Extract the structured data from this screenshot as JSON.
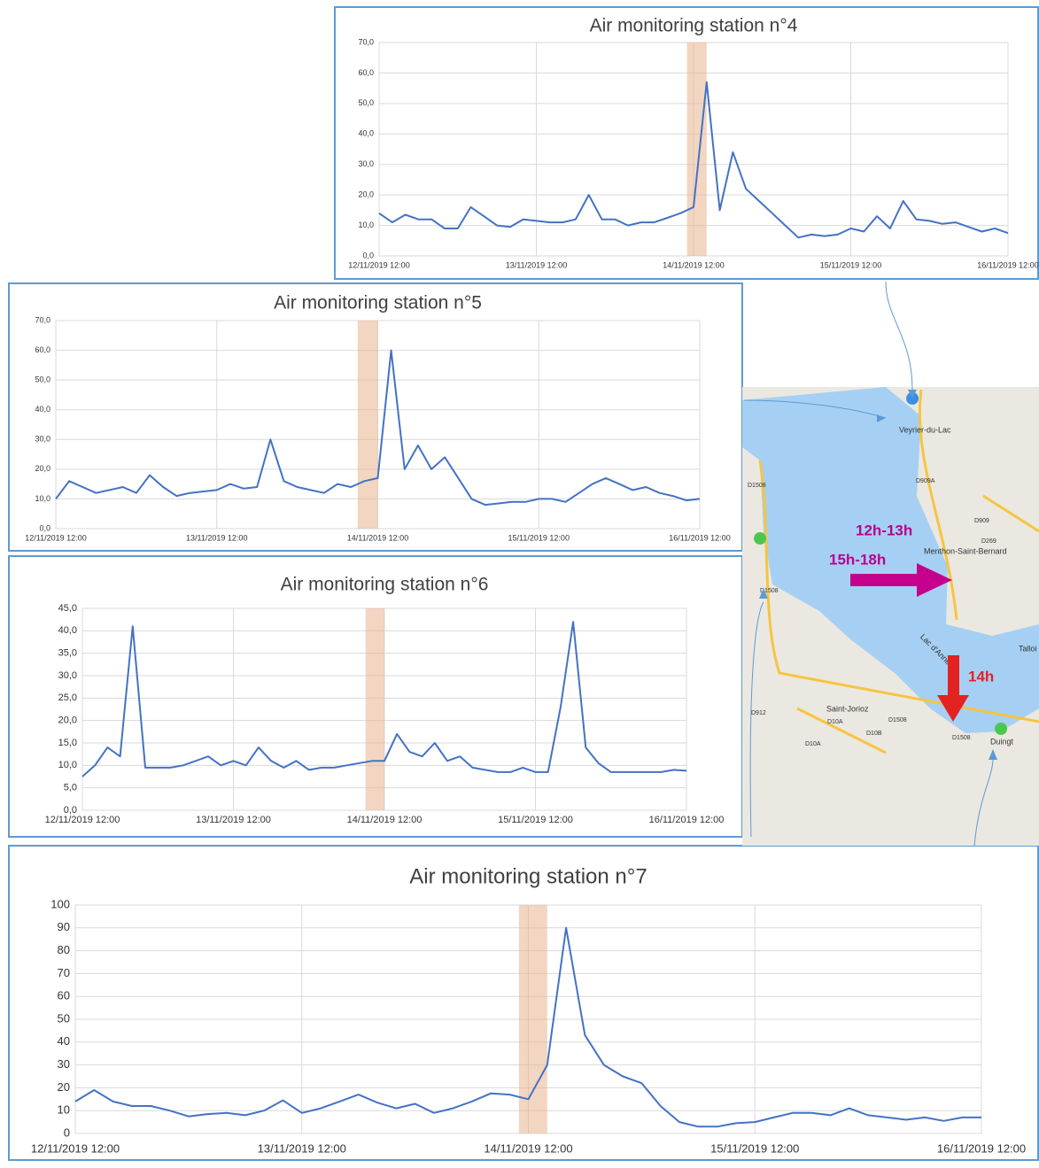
{
  "chart_data": [
    {
      "type": "line",
      "title": "Air monitoring station n°4",
      "x": [
        "12/11/2019 12:00",
        "12/11/2019 14:00",
        "12/11/2019 16:00",
        "12/11/2019 18:00",
        "12/11/2019 20:00",
        "12/11/2019 22:00",
        "13/11/2019 00:00",
        "13/11/2019 02:00",
        "13/11/2019 04:00",
        "13/11/2019 06:00",
        "13/11/2019 08:00",
        "13/11/2019 10:00",
        "13/11/2019 12:00",
        "13/11/2019 14:00",
        "13/11/2019 16:00",
        "13/11/2019 18:00",
        "13/11/2019 20:00",
        "13/11/2019 22:00",
        "14/11/2019 00:00",
        "14/11/2019 02:00",
        "14/11/2019 04:00",
        "14/11/2019 06:00",
        "14/11/2019 08:00",
        "14/11/2019 10:00",
        "14/11/2019 12:00",
        "14/11/2019 14:00",
        "14/11/2019 16:00",
        "14/11/2019 18:00",
        "14/11/2019 20:00",
        "14/11/2019 22:00",
        "15/11/2019 00:00",
        "15/11/2019 02:00",
        "15/11/2019 04:00",
        "15/11/2019 06:00",
        "15/11/2019 08:00",
        "15/11/2019 10:00",
        "15/11/2019 12:00",
        "15/11/2019 14:00",
        "15/11/2019 16:00",
        "15/11/2019 18:00",
        "15/11/2019 20:00",
        "15/11/2019 22:00",
        "16/11/2019 00:00",
        "16/11/2019 02:00",
        "16/11/2019 04:00",
        "16/11/2019 06:00",
        "16/11/2019 08:00",
        "16/11/2019 10:00",
        "16/11/2019 12:00"
      ],
      "values": [
        14,
        11,
        13.5,
        12,
        12,
        9,
        9,
        16,
        13,
        10,
        9.5,
        12,
        11.5,
        11,
        11,
        12,
        20,
        12,
        12,
        10,
        11,
        11,
        12.5,
        14,
        16,
        57,
        15,
        34,
        22,
        18,
        14,
        10,
        6,
        7,
        6.5,
        7,
        9,
        8,
        13,
        9,
        18,
        12,
        11.5,
        10.5,
        11,
        9.5,
        8,
        9,
        7.5
      ],
      "color": "#4472c4",
      "xlim": [
        "12/11/2019 12:00",
        "16/11/2019 12:00"
      ],
      "xticks": [
        "12/11/2019 12:00",
        "13/11/2019 12:00",
        "14/11/2019 12:00",
        "15/11/2019 12:00",
        "16/11/2019 12:00"
      ],
      "ylim": [
        0,
        70
      ],
      "yticks": [
        {
          "value": 0,
          "label": "0,0"
        },
        {
          "value": 10,
          "label": "10,0"
        },
        {
          "value": 20,
          "label": "20,0"
        },
        {
          "value": 30,
          "label": "30,0"
        },
        {
          "value": 40,
          "label": "40,0"
        },
        {
          "value": 50,
          "label": "50,0"
        },
        {
          "value": 60,
          "label": "60,0"
        },
        {
          "value": 70,
          "label": "70,0"
        }
      ],
      "grid": true,
      "highlight": [
        "14/11/2019 11:00",
        "14/11/2019 14:00"
      ]
    },
    {
      "type": "line",
      "title": "Air monitoring station n°5",
      "x": [
        "12/11/2019 12:00",
        "12/11/2019 14:00",
        "12/11/2019 16:00",
        "12/11/2019 18:00",
        "12/11/2019 20:00",
        "12/11/2019 22:00",
        "13/11/2019 00:00",
        "13/11/2019 02:00",
        "13/11/2019 04:00",
        "13/11/2019 06:00",
        "13/11/2019 08:00",
        "13/11/2019 10:00",
        "13/11/2019 12:00",
        "13/11/2019 14:00",
        "13/11/2019 16:00",
        "13/11/2019 18:00",
        "13/11/2019 20:00",
        "13/11/2019 22:00",
        "14/11/2019 00:00",
        "14/11/2019 02:00",
        "14/11/2019 04:00",
        "14/11/2019 06:00",
        "14/11/2019 08:00",
        "14/11/2019 10:00",
        "14/11/2019 12:00",
        "14/11/2019 14:00",
        "14/11/2019 16:00",
        "14/11/2019 18:00",
        "14/11/2019 20:00",
        "14/11/2019 22:00",
        "15/11/2019 00:00",
        "15/11/2019 02:00",
        "15/11/2019 04:00",
        "15/11/2019 06:00",
        "15/11/2019 08:00",
        "15/11/2019 10:00",
        "15/11/2019 12:00",
        "15/11/2019 14:00",
        "15/11/2019 16:00",
        "15/11/2019 18:00",
        "15/11/2019 20:00",
        "15/11/2019 22:00",
        "16/11/2019 00:00",
        "16/11/2019 02:00",
        "16/11/2019 04:00",
        "16/11/2019 06:00",
        "16/11/2019 08:00",
        "16/11/2019 10:00",
        "16/11/2019 12:00"
      ],
      "values": [
        10,
        16,
        14,
        12,
        13,
        14,
        12,
        18,
        14,
        11,
        12,
        12.5,
        13,
        15,
        13.5,
        14,
        30,
        16,
        14,
        13,
        12,
        15,
        14,
        16,
        17,
        60,
        20,
        28,
        20,
        24,
        17,
        10,
        8,
        8.5,
        9,
        9,
        10,
        10,
        9,
        12,
        15,
        17,
        15,
        13,
        14,
        12,
        11,
        9.5,
        10
      ],
      "color": "#4472c4",
      "xlim": [
        "12/11/2019 12:00",
        "16/11/2019 12:00"
      ],
      "xticks": [
        "12/11/2019 12:00",
        "13/11/2019 12:00",
        "14/11/2019 12:00",
        "15/11/2019 12:00",
        "16/11/2019 12:00"
      ],
      "ylim": [
        0,
        70
      ],
      "yticks": [
        {
          "value": 0,
          "label": "0,0"
        },
        {
          "value": 10,
          "label": "10,0"
        },
        {
          "value": 20,
          "label": "20,0"
        },
        {
          "value": 30,
          "label": "30,0"
        },
        {
          "value": 40,
          "label": "40,0"
        },
        {
          "value": 50,
          "label": "50,0"
        },
        {
          "value": 60,
          "label": "60,0"
        },
        {
          "value": 70,
          "label": "70,0"
        }
      ],
      "grid": true,
      "highlight": [
        "14/11/2019 09:00",
        "14/11/2019 12:00"
      ]
    },
    {
      "type": "line",
      "title": "Air monitoring station n°6",
      "x": [
        "12/11/2019 12:00",
        "12/11/2019 14:00",
        "12/11/2019 16:00",
        "12/11/2019 18:00",
        "12/11/2019 20:00",
        "12/11/2019 22:00",
        "13/11/2019 00:00",
        "13/11/2019 02:00",
        "13/11/2019 04:00",
        "13/11/2019 06:00",
        "13/11/2019 08:00",
        "13/11/2019 10:00",
        "13/11/2019 12:00",
        "13/11/2019 14:00",
        "13/11/2019 16:00",
        "13/11/2019 18:00",
        "13/11/2019 20:00",
        "13/11/2019 22:00",
        "14/11/2019 00:00",
        "14/11/2019 02:00",
        "14/11/2019 04:00",
        "14/11/2019 06:00",
        "14/11/2019 08:00",
        "14/11/2019 10:00",
        "14/11/2019 12:00",
        "14/11/2019 14:00",
        "14/11/2019 16:00",
        "14/11/2019 18:00",
        "14/11/2019 20:00",
        "14/11/2019 22:00",
        "15/11/2019 00:00",
        "15/11/2019 02:00",
        "15/11/2019 04:00",
        "15/11/2019 06:00",
        "15/11/2019 08:00",
        "15/11/2019 10:00",
        "15/11/2019 12:00",
        "15/11/2019 14:00",
        "15/11/2019 16:00",
        "15/11/2019 18:00",
        "15/11/2019 20:00",
        "15/11/2019 22:00",
        "16/11/2019 00:00",
        "16/11/2019 02:00",
        "16/11/2019 04:00",
        "16/11/2019 06:00",
        "16/11/2019 08:00",
        "16/11/2019 10:00",
        "16/11/2019 12:00"
      ],
      "values": [
        7.5,
        10,
        14,
        12,
        41,
        9.5,
        9.5,
        9.5,
        10,
        11,
        12,
        10,
        11,
        10,
        14,
        11,
        9.5,
        11,
        9,
        9.5,
        9.5,
        10,
        10.5,
        11,
        11,
        17,
        13,
        12,
        15,
        11,
        12,
        9.5,
        9,
        8.5,
        8.5,
        9.5,
        8.5,
        8.5,
        23,
        42,
        14,
        10.5,
        8.5,
        8.5,
        8.5,
        8.5,
        8.5,
        9,
        8.8
      ],
      "color": "#4472c4",
      "xlim": [
        "12/11/2019 12:00",
        "16/11/2019 12:00"
      ],
      "xticks": [
        "12/11/2019 12:00",
        "13/11/2019 12:00",
        "14/11/2019 12:00",
        "15/11/2019 12:00",
        "16/11/2019 12:00"
      ],
      "ylim": [
        0,
        45
      ],
      "yticks": [
        {
          "value": 0,
          "label": "0,0"
        },
        {
          "value": 5,
          "label": "5,0"
        },
        {
          "value": 10,
          "label": "10,0"
        },
        {
          "value": 15,
          "label": "15,0"
        },
        {
          "value": 20,
          "label": "20,0"
        },
        {
          "value": 25,
          "label": "25,0"
        },
        {
          "value": 30,
          "label": "30,0"
        },
        {
          "value": 35,
          "label": "35,0"
        },
        {
          "value": 40,
          "label": "40,0"
        },
        {
          "value": 45,
          "label": "45,0"
        }
      ],
      "grid": true,
      "highlight": [
        "14/11/2019 09:00",
        "14/11/2019 12:00"
      ]
    },
    {
      "type": "line",
      "title": "Air monitoring station n°7",
      "x": [
        "12/11/2019 12:00",
        "12/11/2019 14:00",
        "12/11/2019 16:00",
        "12/11/2019 18:00",
        "12/11/2019 20:00",
        "12/11/2019 22:00",
        "13/11/2019 00:00",
        "13/11/2019 02:00",
        "13/11/2019 04:00",
        "13/11/2019 06:00",
        "13/11/2019 08:00",
        "13/11/2019 10:00",
        "13/11/2019 12:00",
        "13/11/2019 14:00",
        "13/11/2019 16:00",
        "13/11/2019 18:00",
        "13/11/2019 20:00",
        "13/11/2019 22:00",
        "14/11/2019 00:00",
        "14/11/2019 02:00",
        "14/11/2019 04:00",
        "14/11/2019 06:00",
        "14/11/2019 08:00",
        "14/11/2019 10:00",
        "14/11/2019 12:00",
        "14/11/2019 14:00",
        "14/11/2019 16:00",
        "14/11/2019 18:00",
        "14/11/2019 20:00",
        "14/11/2019 22:00",
        "15/11/2019 00:00",
        "15/11/2019 02:00",
        "15/11/2019 04:00",
        "15/11/2019 06:00",
        "15/11/2019 08:00",
        "15/11/2019 10:00",
        "15/11/2019 12:00",
        "15/11/2019 14:00",
        "15/11/2019 16:00",
        "15/11/2019 18:00",
        "15/11/2019 20:00",
        "15/11/2019 22:00",
        "16/11/2019 00:00",
        "16/11/2019 02:00",
        "16/11/2019 04:00",
        "16/11/2019 06:00",
        "16/11/2019 08:00",
        "16/11/2019 10:00",
        "16/11/2019 12:00"
      ],
      "values": [
        14,
        19,
        14,
        12,
        12,
        10,
        7.5,
        8.5,
        9,
        8,
        10,
        14.5,
        9,
        11,
        14,
        17,
        13.5,
        11,
        13,
        9,
        11,
        14,
        17.5,
        17,
        15,
        30,
        90,
        43,
        30,
        25,
        22,
        12,
        5,
        3,
        3,
        4.5,
        5,
        7,
        9,
        9,
        8,
        11,
        8,
        7,
        6,
        7,
        5.5,
        7,
        7
      ],
      "color": "#4472c4",
      "xlim": [
        "12/11/2019 12:00",
        "16/11/2019 12:00"
      ],
      "xticks": [
        "12/11/2019 12:00",
        "13/11/2019 12:00",
        "14/11/2019 12:00",
        "15/11/2019 12:00",
        "16/11/2019 12:00"
      ],
      "ylim": [
        0,
        100
      ],
      "yticks": [
        0,
        10,
        20,
        30,
        40,
        50,
        60,
        70,
        80,
        90,
        100
      ],
      "grid": true,
      "highlight": [
        "14/11/2019 11:00",
        "14/11/2019 14:00"
      ]
    }
  ],
  "map": {
    "places": [
      "Veyrier-du-Lac",
      "Menthon-Saint-Bernard",
      "Lac d'Annecy",
      "Saint-Jorioz",
      "Duingt",
      "Talloi"
    ],
    "roads": [
      "D1508",
      "D909A",
      "D909",
      "D269",
      "D1508",
      "D912",
      "D10A",
      "D10B",
      "D10A",
      "D1508",
      "D1508"
    ],
    "annotations": [
      "12h-13h",
      "15h-18h",
      "14h"
    ]
  }
}
